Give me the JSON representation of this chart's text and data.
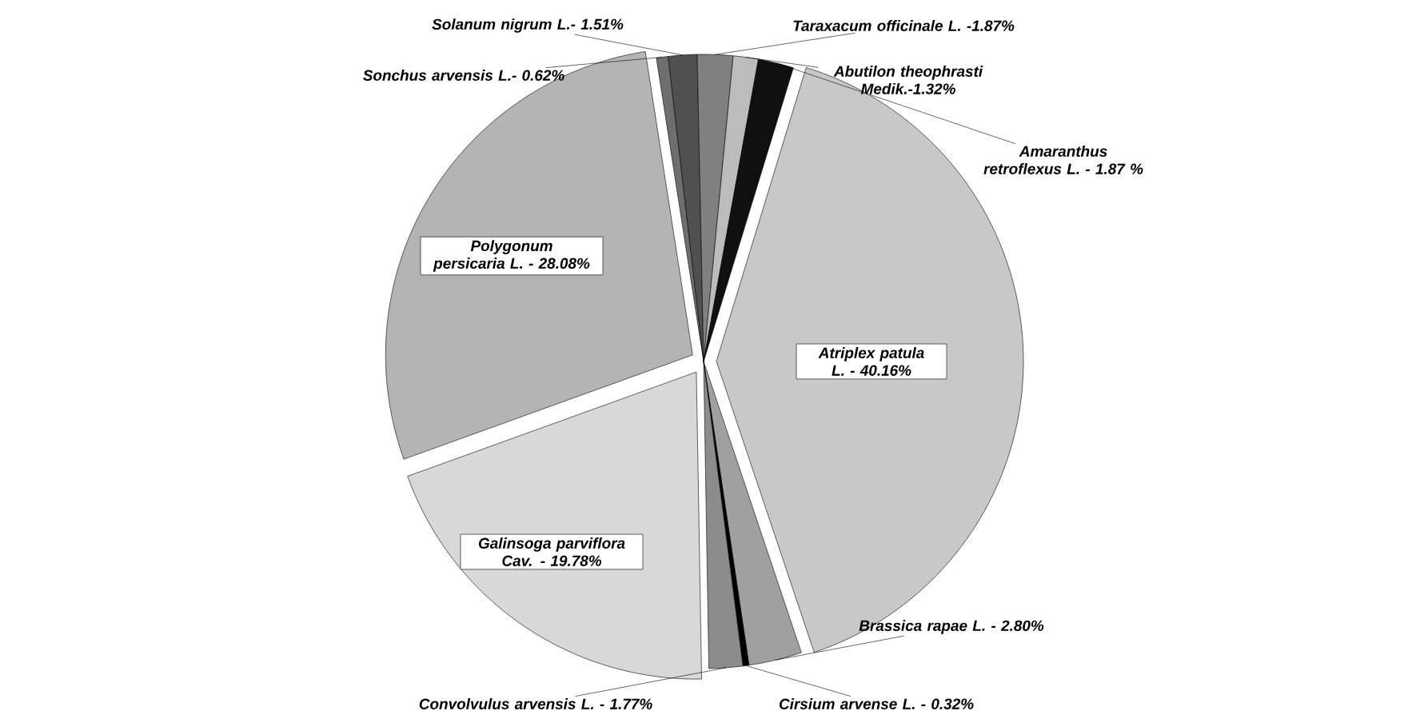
{
  "chart_data": {
    "type": "pie",
    "categories": [
      "Atriplex patula L. - 40.16%",
      "Brassica rapae L. - 2.80%",
      "Cirsium arvense L. - 0.32%",
      "Convolvulus arvensis L. - 1.77%",
      "Galinsoga parviflora Cav. - 19.78%",
      "Polygonum persicaria L. - 28.08%",
      "Sonchus arvensis L.- 0.62%",
      "Solanum nigrum L.- 1.51%",
      "Taraxacum officinale L. -1.87%",
      "Abutilon theophrasti Medik.-1.32%",
      "Amaranthus retroflexus L. - 1.87 %"
    ],
    "values": [
      40.16,
      2.8,
      0.32,
      1.77,
      19.78,
      28.08,
      0.62,
      1.51,
      1.87,
      1.32,
      1.87
    ],
    "colors": [
      "#c8c8c8",
      "#a0a0a0",
      "#000000",
      "#8c8c8c",
      "#d8d8d8",
      "#b4b4b4",
      "#6e6e6e",
      "#505050",
      "#808080",
      "#bcbcbc",
      "#101010"
    ]
  }
}
